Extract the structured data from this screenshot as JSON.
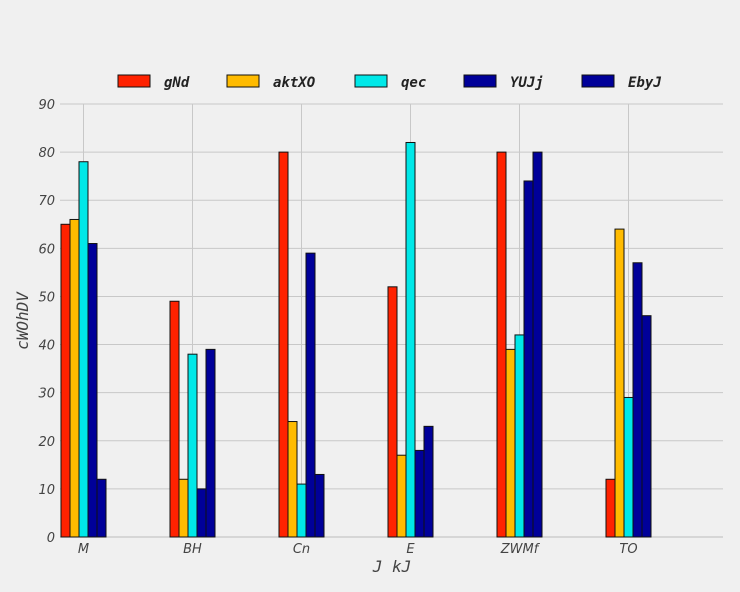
{
  "chart_data": {
    "type": "bar",
    "title": "",
    "xlabel": "J kJ",
    "ylabel": "cWOhDV",
    "ylim": [
      0,
      90
    ],
    "yticks": [
      0,
      10,
      20,
      30,
      40,
      50,
      60,
      70,
      80,
      90
    ],
    "grid": true,
    "legend_position": "top",
    "categories": [
      "M",
      "BH",
      "Cn",
      "E",
      "ZWMf",
      "TO"
    ],
    "series": [
      {
        "name": "gNd",
        "color": "#ff2200",
        "values": [
          65,
          49,
          80,
          52,
          80,
          12
        ]
      },
      {
        "name": "aktXO",
        "color": "#ffbb00",
        "values": [
          66,
          12,
          24,
          17,
          39,
          64
        ]
      },
      {
        "name": "qec",
        "color": "#00e8e8",
        "values": [
          78,
          38,
          11,
          82,
          42,
          29
        ]
      },
      {
        "name": "YUJj",
        "color": "#000099",
        "values": [
          61,
          10,
          59,
          18,
          74,
          57
        ]
      },
      {
        "name": "EbyJ",
        "color": "#000099",
        "values": [
          12,
          39,
          13,
          23,
          80,
          46
        ]
      }
    ]
  }
}
